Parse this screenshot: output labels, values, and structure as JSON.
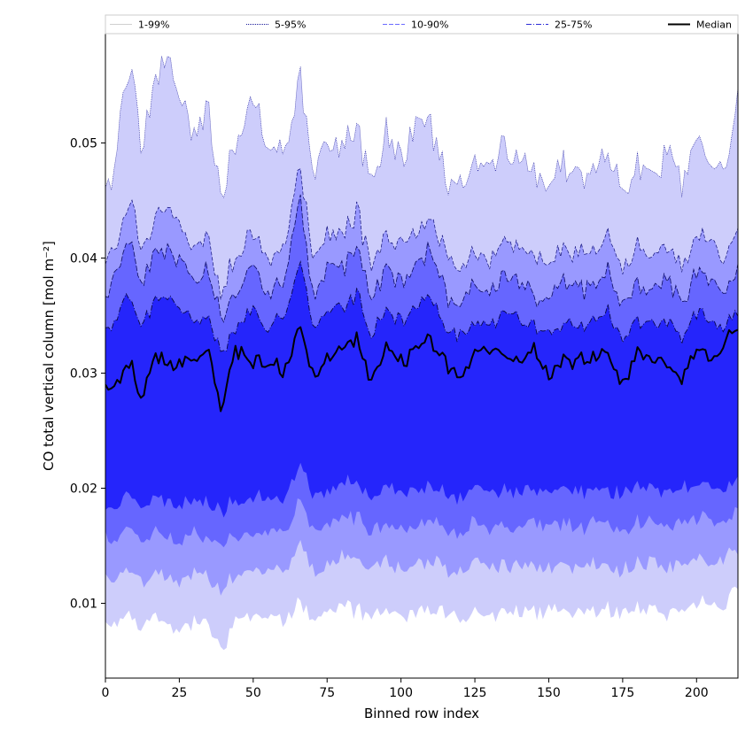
{
  "chart_data": {
    "type": "area",
    "title": "",
    "xlabel": "Binned row index",
    "ylabel": "CO total vertical column [mol m⁻²]",
    "xlim": [
      0,
      214
    ],
    "ylim": [
      0.0035,
      0.0595
    ],
    "x_ticks": [
      0,
      25,
      50,
      75,
      100,
      125,
      150,
      175,
      200
    ],
    "y_ticks": [
      0.01,
      0.02,
      0.03,
      0.04,
      0.05
    ],
    "y_tick_labels": [
      "0.01",
      "0.02",
      "0.03",
      "0.04",
      "0.05"
    ],
    "grid": false,
    "legend_position": "top",
    "legend": [
      {
        "label": "1-99%",
        "color": "#cfcfcf",
        "dash": "none"
      },
      {
        "label": "5-95%",
        "color": "#1a1a99",
        "dash": "1,1"
      },
      {
        "label": "10-90%",
        "color": "#6b6bff",
        "dash": "5,2"
      },
      {
        "label": "25-75%",
        "color": "#2d2dd6",
        "dash": "6,2,1,2"
      },
      {
        "label": "Median",
        "color": "#000000",
        "dash": "none"
      }
    ],
    "colors": {
      "band_1_99": "#cdcdfb",
      "band_5_95": "#9999ff",
      "band_10_90": "#6666ff",
      "band_25_75": "#2525fb",
      "median": "#000000"
    },
    "anchors": {
      "x": [
        0,
        3,
        6,
        9,
        12,
        16,
        21,
        25,
        30,
        35,
        39,
        44,
        50,
        55,
        60,
        66,
        70,
        75,
        80,
        85,
        90,
        95,
        100,
        105,
        110,
        115,
        120,
        125,
        130,
        135,
        140,
        145,
        150,
        155,
        160,
        165,
        170,
        175,
        180,
        185,
        190,
        195,
        200,
        205,
        210,
        214
      ],
      "p99": [
        0.046,
        0.048,
        0.054,
        0.0575,
        0.05,
        0.055,
        0.0575,
        0.054,
        0.051,
        0.053,
        0.045,
        0.05,
        0.054,
        0.05,
        0.049,
        0.0555,
        0.048,
        0.05,
        0.049,
        0.052,
        0.046,
        0.051,
        0.049,
        0.051,
        0.052,
        0.047,
        0.046,
        0.049,
        0.048,
        0.05,
        0.049,
        0.047,
        0.046,
        0.048,
        0.047,
        0.048,
        0.049,
        0.046,
        0.048,
        0.047,
        0.049,
        0.046,
        0.05,
        0.048,
        0.047,
        0.054
      ],
      "p95": [
        0.04,
        0.041,
        0.043,
        0.0455,
        0.041,
        0.043,
        0.045,
        0.043,
        0.041,
        0.042,
        0.037,
        0.04,
        0.042,
        0.04,
        0.041,
        0.048,
        0.04,
        0.042,
        0.042,
        0.044,
        0.039,
        0.042,
        0.041,
        0.042,
        0.044,
        0.04,
        0.039,
        0.041,
        0.04,
        0.042,
        0.041,
        0.04,
        0.039,
        0.041,
        0.04,
        0.041,
        0.042,
        0.039,
        0.041,
        0.04,
        0.041,
        0.039,
        0.042,
        0.041,
        0.04,
        0.042
      ],
      "p90": [
        0.037,
        0.038,
        0.04,
        0.042,
        0.038,
        0.04,
        0.041,
        0.04,
        0.038,
        0.039,
        0.035,
        0.037,
        0.039,
        0.037,
        0.038,
        0.045,
        0.037,
        0.039,
        0.039,
        0.041,
        0.036,
        0.039,
        0.038,
        0.039,
        0.041,
        0.037,
        0.036,
        0.038,
        0.037,
        0.039,
        0.038,
        0.037,
        0.036,
        0.038,
        0.037,
        0.038,
        0.039,
        0.036,
        0.038,
        0.037,
        0.038,
        0.036,
        0.039,
        0.038,
        0.037,
        0.039
      ],
      "p75": [
        0.034,
        0.0345,
        0.036,
        0.037,
        0.0345,
        0.036,
        0.0365,
        0.036,
        0.0345,
        0.035,
        0.032,
        0.034,
        0.0355,
        0.034,
        0.0345,
        0.04,
        0.034,
        0.0355,
        0.0355,
        0.037,
        0.033,
        0.0355,
        0.0345,
        0.0355,
        0.037,
        0.034,
        0.033,
        0.0345,
        0.034,
        0.0355,
        0.0345,
        0.034,
        0.033,
        0.0345,
        0.034,
        0.0345,
        0.0355,
        0.033,
        0.0345,
        0.034,
        0.0345,
        0.033,
        0.0355,
        0.0345,
        0.034,
        0.035
      ],
      "median": [
        0.029,
        0.029,
        0.0295,
        0.031,
        0.028,
        0.031,
        0.031,
        0.031,
        0.031,
        0.032,
        0.027,
        0.032,
        0.031,
        0.031,
        0.03,
        0.034,
        0.03,
        0.031,
        0.032,
        0.033,
        0.029,
        0.032,
        0.031,
        0.032,
        0.033,
        0.031,
        0.0295,
        0.032,
        0.032,
        0.032,
        0.031,
        0.032,
        0.0295,
        0.031,
        0.031,
        0.0315,
        0.032,
        0.029,
        0.032,
        0.031,
        0.031,
        0.0295,
        0.032,
        0.031,
        0.0325,
        0.034
      ],
      "p25": [
        0.0185,
        0.018,
        0.019,
        0.0195,
        0.0185,
        0.019,
        0.019,
        0.0185,
        0.019,
        0.019,
        0.018,
        0.019,
        0.019,
        0.0195,
        0.019,
        0.022,
        0.0195,
        0.0195,
        0.0205,
        0.0205,
        0.019,
        0.02,
        0.0195,
        0.0195,
        0.0205,
        0.0195,
        0.019,
        0.0205,
        0.0195,
        0.02,
        0.0195,
        0.02,
        0.0195,
        0.02,
        0.0195,
        0.02,
        0.02,
        0.0195,
        0.02,
        0.02,
        0.0195,
        0.02,
        0.0205,
        0.02,
        0.02,
        0.021
      ],
      "p10": [
        0.016,
        0.0155,
        0.016,
        0.0165,
        0.0155,
        0.016,
        0.016,
        0.0155,
        0.016,
        0.016,
        0.015,
        0.016,
        0.016,
        0.0165,
        0.016,
        0.019,
        0.0165,
        0.0165,
        0.0175,
        0.0175,
        0.016,
        0.017,
        0.0165,
        0.0165,
        0.0175,
        0.0165,
        0.016,
        0.0175,
        0.0165,
        0.017,
        0.0165,
        0.017,
        0.0165,
        0.017,
        0.0165,
        0.017,
        0.017,
        0.0165,
        0.017,
        0.017,
        0.0165,
        0.017,
        0.0175,
        0.017,
        0.017,
        0.018
      ],
      "p5": [
        0.0125,
        0.012,
        0.0125,
        0.013,
        0.012,
        0.0125,
        0.0125,
        0.012,
        0.0125,
        0.0125,
        0.011,
        0.0125,
        0.0125,
        0.013,
        0.0125,
        0.015,
        0.013,
        0.013,
        0.014,
        0.014,
        0.0125,
        0.0135,
        0.013,
        0.013,
        0.014,
        0.013,
        0.0125,
        0.014,
        0.013,
        0.0135,
        0.013,
        0.0135,
        0.013,
        0.0135,
        0.013,
        0.0135,
        0.0135,
        0.013,
        0.0135,
        0.0135,
        0.013,
        0.0135,
        0.014,
        0.0135,
        0.014,
        0.0145
      ],
      "p1": [
        0.0085,
        0.008,
        0.0085,
        0.009,
        0.008,
        0.0085,
        0.0085,
        0.008,
        0.0085,
        0.0085,
        0.006,
        0.0085,
        0.0085,
        0.009,
        0.0085,
        0.01,
        0.009,
        0.009,
        0.0095,
        0.0095,
        0.0085,
        0.0095,
        0.009,
        0.009,
        0.0095,
        0.009,
        0.0085,
        0.0095,
        0.009,
        0.0095,
        0.009,
        0.0095,
        0.009,
        0.0095,
        0.009,
        0.0095,
        0.0095,
        0.009,
        0.0095,
        0.0095,
        0.009,
        0.0095,
        0.01,
        0.0095,
        0.01,
        0.0115
      ]
    }
  }
}
